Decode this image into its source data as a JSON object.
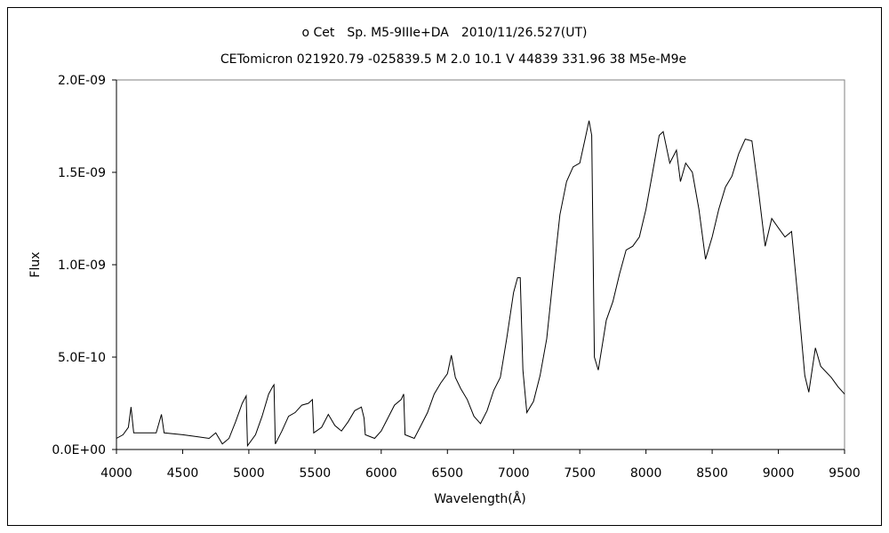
{
  "chart_data": {
    "type": "line",
    "title": "ο Cet　Sp. M5-9IIIe+DA　2010/11/26.527(UT)",
    "subtitle": "CETomicron 021920.79 -025839.5 M 2.0 10.1 V 44839 331.96 38 M5e-M9e",
    "xlabel": "Wavelength(Å)",
    "ylabel": "Flux",
    "xlim": [
      4000,
      9500
    ],
    "ylim": [
      0,
      2e-09
    ],
    "x_ticks": [
      "4000",
      "4500",
      "5000",
      "5500",
      "6000",
      "6500",
      "7000",
      "7500",
      "8000",
      "8500",
      "9000",
      "9500"
    ],
    "y_ticks": [
      "0.0E+00",
      "5.0E-10",
      "1.0E-09",
      "1.5E-09",
      "2.0E-09"
    ],
    "grid": false,
    "line_color": "#000000",
    "series": [
      {
        "x": [
          4000,
          4050,
          4090,
          4110,
          4130,
          4200,
          4300,
          4340,
          4360,
          4500,
          4600,
          4700,
          4750,
          4800,
          4850,
          4900,
          4950,
          4980,
          4990,
          5050,
          5100,
          5150,
          5180,
          5190,
          5200,
          5250,
          5300,
          5350,
          5400,
          5450,
          5480,
          5490,
          5550,
          5600,
          5650,
          5700,
          5750,
          5800,
          5850,
          5870,
          5880,
          5950,
          6000,
          6050,
          6100,
          6150,
          6170,
          6180,
          6250,
          6300,
          6350,
          6400,
          6450,
          6500,
          6530,
          6560,
          6600,
          6650,
          6700,
          6750,
          6800,
          6850,
          6900,
          6950,
          7000,
          7030,
          7050,
          7070,
          7100,
          7150,
          7200,
          7250,
          7300,
          7350,
          7400,
          7450,
          7500,
          7540,
          7570,
          7590,
          7610,
          7640,
          7700,
          7750,
          7800,
          7850,
          7900,
          7950,
          8000,
          8050,
          8100,
          8130,
          8180,
          8230,
          8260,
          8300,
          8350,
          8400,
          8450,
          8500,
          8550,
          8600,
          8650,
          8700,
          8750,
          8800,
          8850,
          8900,
          8950,
          9000,
          9050,
          9100,
          9150,
          9200,
          9230,
          9280,
          9320,
          9400,
          9450,
          9500
        ],
        "y": [
          6e-11,
          8e-11,
          1.2e-10,
          2.3e-10,
          9e-11,
          9e-11,
          9e-11,
          1.9e-10,
          9e-11,
          8e-11,
          7e-11,
          6e-11,
          9e-11,
          3e-11,
          6e-11,
          1.5e-10,
          2.5e-10,
          2.9e-10,
          2e-11,
          8e-11,
          1.8e-10,
          3e-10,
          3.4e-10,
          3.5e-10,
          3e-11,
          1e-10,
          1.8e-10,
          2e-10,
          2.4e-10,
          2.5e-10,
          2.7e-10,
          9e-11,
          1.2e-10,
          1.9e-10,
          1.3e-10,
          1e-10,
          1.5e-10,
          2.1e-10,
          2.3e-10,
          1.7e-10,
          8e-11,
          6e-11,
          1e-10,
          1.7e-10,
          2.4e-10,
          2.7e-10,
          3e-10,
          8e-11,
          6e-11,
          1.3e-10,
          2e-10,
          3e-10,
          3.6e-10,
          4.1e-10,
          5.1e-10,
          3.9e-10,
          3.3e-10,
          2.7e-10,
          1.8e-10,
          1.4e-10,
          2.1e-10,
          3.2e-10,
          3.9e-10,
          6.1e-10,
          8.5e-10,
          9.3e-10,
          9.3e-10,
          4.3e-10,
          2e-10,
          2.6e-10,
          4e-10,
          6e-10,
          9.4e-10,
          1.27e-09,
          1.45e-09,
          1.53e-09,
          1.55e-09,
          1.68e-09,
          1.78e-09,
          1.7e-09,
          5e-10,
          4.3e-10,
          7e-10,
          8e-10,
          9.5e-10,
          1.08e-09,
          1.1e-09,
          1.15e-09,
          1.3e-09,
          1.5e-09,
          1.7e-09,
          1.72e-09,
          1.55e-09,
          1.62e-09,
          1.45e-09,
          1.55e-09,
          1.5e-09,
          1.3e-09,
          1.03e-09,
          1.15e-09,
          1.3e-09,
          1.42e-09,
          1.48e-09,
          1.6e-09,
          1.68e-09,
          1.67e-09,
          1.4e-09,
          1.1e-09,
          1.25e-09,
          1.2e-09,
          1.15e-09,
          1.18e-09,
          8e-10,
          4e-10,
          3.1e-10,
          5.5e-10,
          4.5e-10,
          3.9e-10,
          3.4e-10,
          3e-10
        ]
      }
    ]
  }
}
